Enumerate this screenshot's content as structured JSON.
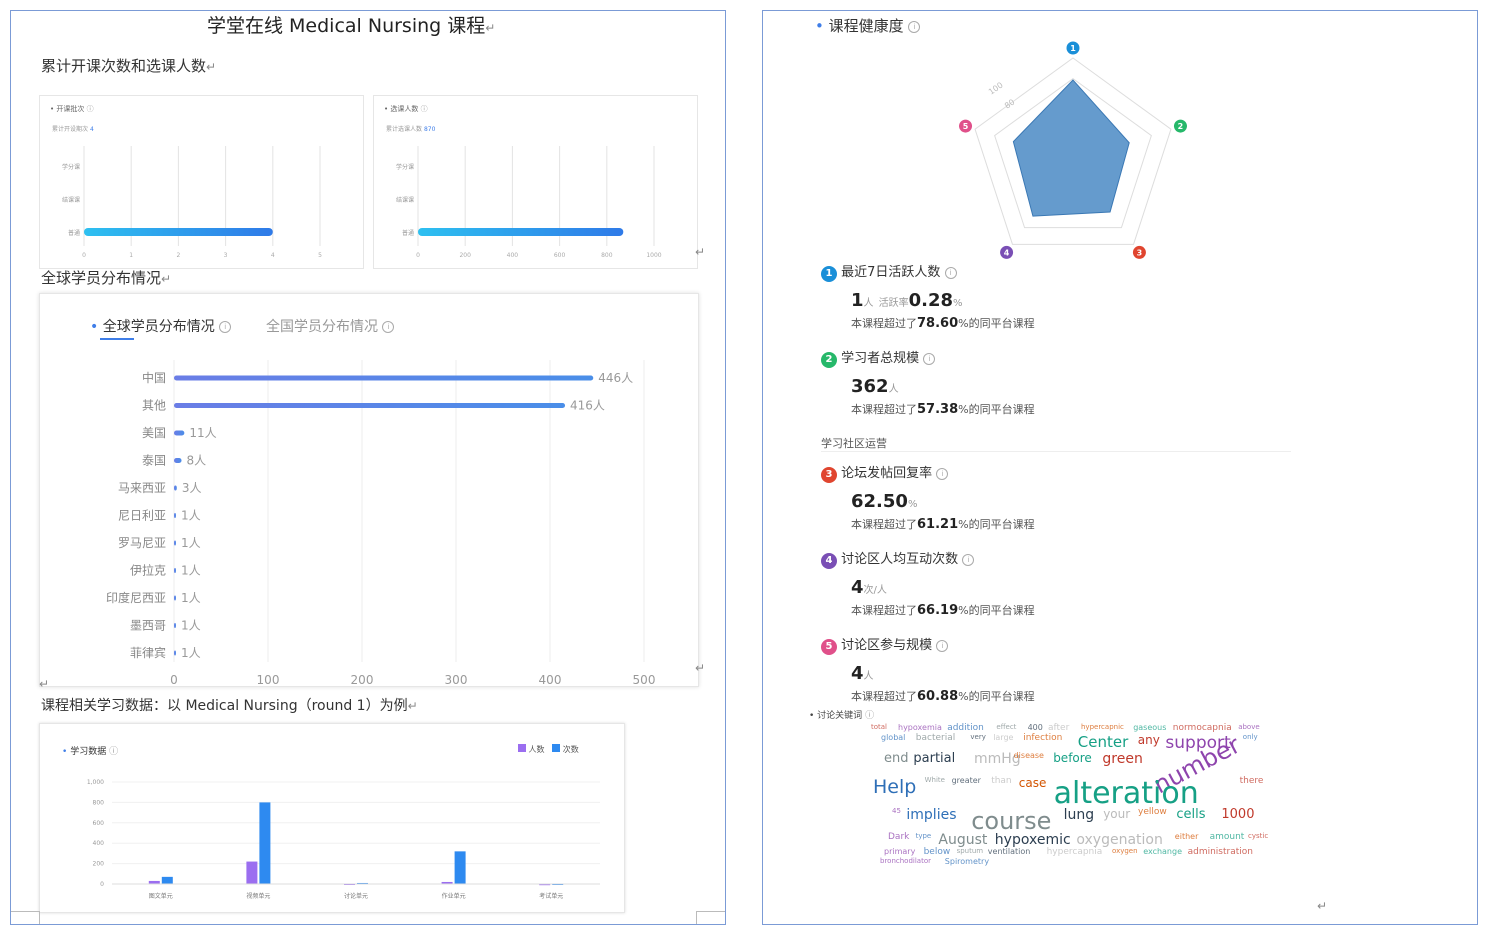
{
  "left": {
    "title": "学堂在线 Medical Nursing 课程",
    "section1": "累计开课次数和选课人数",
    "panel_a": {
      "title": "开课批次",
      "sub_prefix": "累计开设期次",
      "sub_value": "4",
      "rows": [
        "学分课",
        "结课课",
        "普通"
      ],
      "ticks": [
        "0",
        "1",
        "2",
        "3",
        "4",
        "5"
      ],
      "bar_value": 4,
      "xmax": 5
    },
    "panel_b": {
      "title": "选课人数",
      "sub_prefix": "累计选课人数",
      "sub_value": "870",
      "rows": [
        "学分课",
        "结课课",
        "普通"
      ],
      "ticks": [
        "0",
        "200",
        "400",
        "600",
        "800",
        "1000"
      ],
      "bar_value": 870,
      "xmax": 1000
    },
    "section2": "全球学员分布情况",
    "dist_tabs": [
      "全球学员分布情况",
      "全国学员分布情况"
    ],
    "section3": "课程相关学习数据：以 Medical Nursing（round 1）为例",
    "study_title": "学习数据",
    "legend": [
      "人数",
      "次数"
    ]
  },
  "right": {
    "health_title": "课程健康度",
    "radar_ticks": [
      "100",
      "80"
    ],
    "radar_labels": [
      "1",
      "2",
      "3",
      "4",
      "5"
    ],
    "metrics": [
      {
        "num": "1",
        "color": "#1a8fd8",
        "label": "最近7日活跃人数",
        "value": "1",
        "unit": "人",
        "extra_label": "活跃率",
        "extra_value": "0.28",
        "extra_unit": "%",
        "pct_prefix": "本课程超过了",
        "pct": "78.60",
        "pct_suffix": "%的同平台课程"
      },
      {
        "num": "2",
        "color": "#26b86a",
        "label": "学习者总规模",
        "value": "362",
        "unit": "人",
        "pct_prefix": "本课程超过了",
        "pct": "57.38",
        "pct_suffix": "%的同平台课程"
      },
      {
        "num": "3",
        "color": "#e0452f",
        "label": "论坛发帖回复率",
        "value": "62.50",
        "unit": "%",
        "pct_prefix": "本课程超过了",
        "pct": "61.21",
        "pct_suffix": "%的同平台课程"
      },
      {
        "num": "4",
        "color": "#7a4fb5",
        "label": "讨论区人均互动次数",
        "value": "4",
        "unit": "次/人",
        "pct_prefix": "本课程超过了",
        "pct": "66.19",
        "pct_suffix": "%的同平台课程"
      },
      {
        "num": "5",
        "color": "#e0508a",
        "label": "讨论区参与规模",
        "value": "4",
        "unit": "人",
        "pct_prefix": "本课程超过了",
        "pct": "60.88",
        "pct_suffix": "%的同平台课程"
      }
    ],
    "community_title": "学习社区运营",
    "keyword_title": "讨论关键词",
    "words": [
      "total",
      "hypoxemia",
      "addition",
      "effect",
      "400",
      "after",
      "hypercapnic",
      "gaseous",
      "normocapnia",
      "above",
      "global",
      "bacterial",
      "very",
      "large",
      "infection",
      "Center",
      "any",
      "support",
      "only",
      "end",
      "partial",
      "mmHg",
      "disease",
      "before",
      "green",
      "number",
      "Help",
      "White",
      "greater",
      "than",
      "case",
      "alteration",
      "there",
      "45",
      "implies",
      "course",
      "lung",
      "your",
      "yellow",
      "cells",
      "1000",
      "Dark",
      "type",
      "August",
      "hypoxemic",
      "oxygenation",
      "either",
      "amount",
      "cystic",
      "primary",
      "below",
      "sputum",
      "ventilation",
      "hypercapnia",
      "oxygen",
      "exchange",
      "administration",
      "bronchodilator",
      "Spirometry"
    ]
  },
  "chart_data": [
    {
      "type": "bar",
      "title": "全球学员分布情况",
      "orientation": "horizontal",
      "categories": [
        "中国",
        "其他",
        "美国",
        "泰国",
        "马来西亚",
        "尼日利亚",
        "罗马尼亚",
        "伊拉克",
        "印度尼西亚",
        "墨西哥",
        "菲律宾"
      ],
      "values": [
        446,
        416,
        11,
        8,
        3,
        1,
        1,
        1,
        1,
        1,
        1
      ],
      "value_labels": [
        "446人",
        "416人",
        "11人",
        "8人",
        "3人",
        "1人",
        "1人",
        "1人",
        "1人",
        "1人",
        "1人"
      ],
      "xlim": [
        0,
        500
      ],
      "xticks": [
        "0",
        "100",
        "200",
        "300",
        "400",
        "500"
      ],
      "grid": true
    },
    {
      "type": "bar",
      "title": "学习数据",
      "categories": [
        "图文单元",
        "视频单元",
        "讨论单元",
        "作业单元",
        "考试单元"
      ],
      "series": [
        {
          "name": "人数",
          "values": [
            30,
            220,
            5,
            20,
            3
          ],
          "color": "#9b6ef0"
        },
        {
          "name": "次数",
          "values": [
            70,
            800,
            10,
            320,
            5
          ],
          "color": "#2e8af0"
        }
      ],
      "ylim": [
        0,
        1000
      ],
      "yticks": [
        "0",
        "200",
        "400",
        "600",
        "800",
        "1,000"
      ],
      "legend": "top-right"
    },
    {
      "type": "radar",
      "title": "课程健康度",
      "axes": [
        "1",
        "2",
        "3",
        "4",
        "5"
      ],
      "values": [
        78.6,
        57.38,
        61.21,
        66.19,
        60.88
      ],
      "max": 100
    }
  ]
}
